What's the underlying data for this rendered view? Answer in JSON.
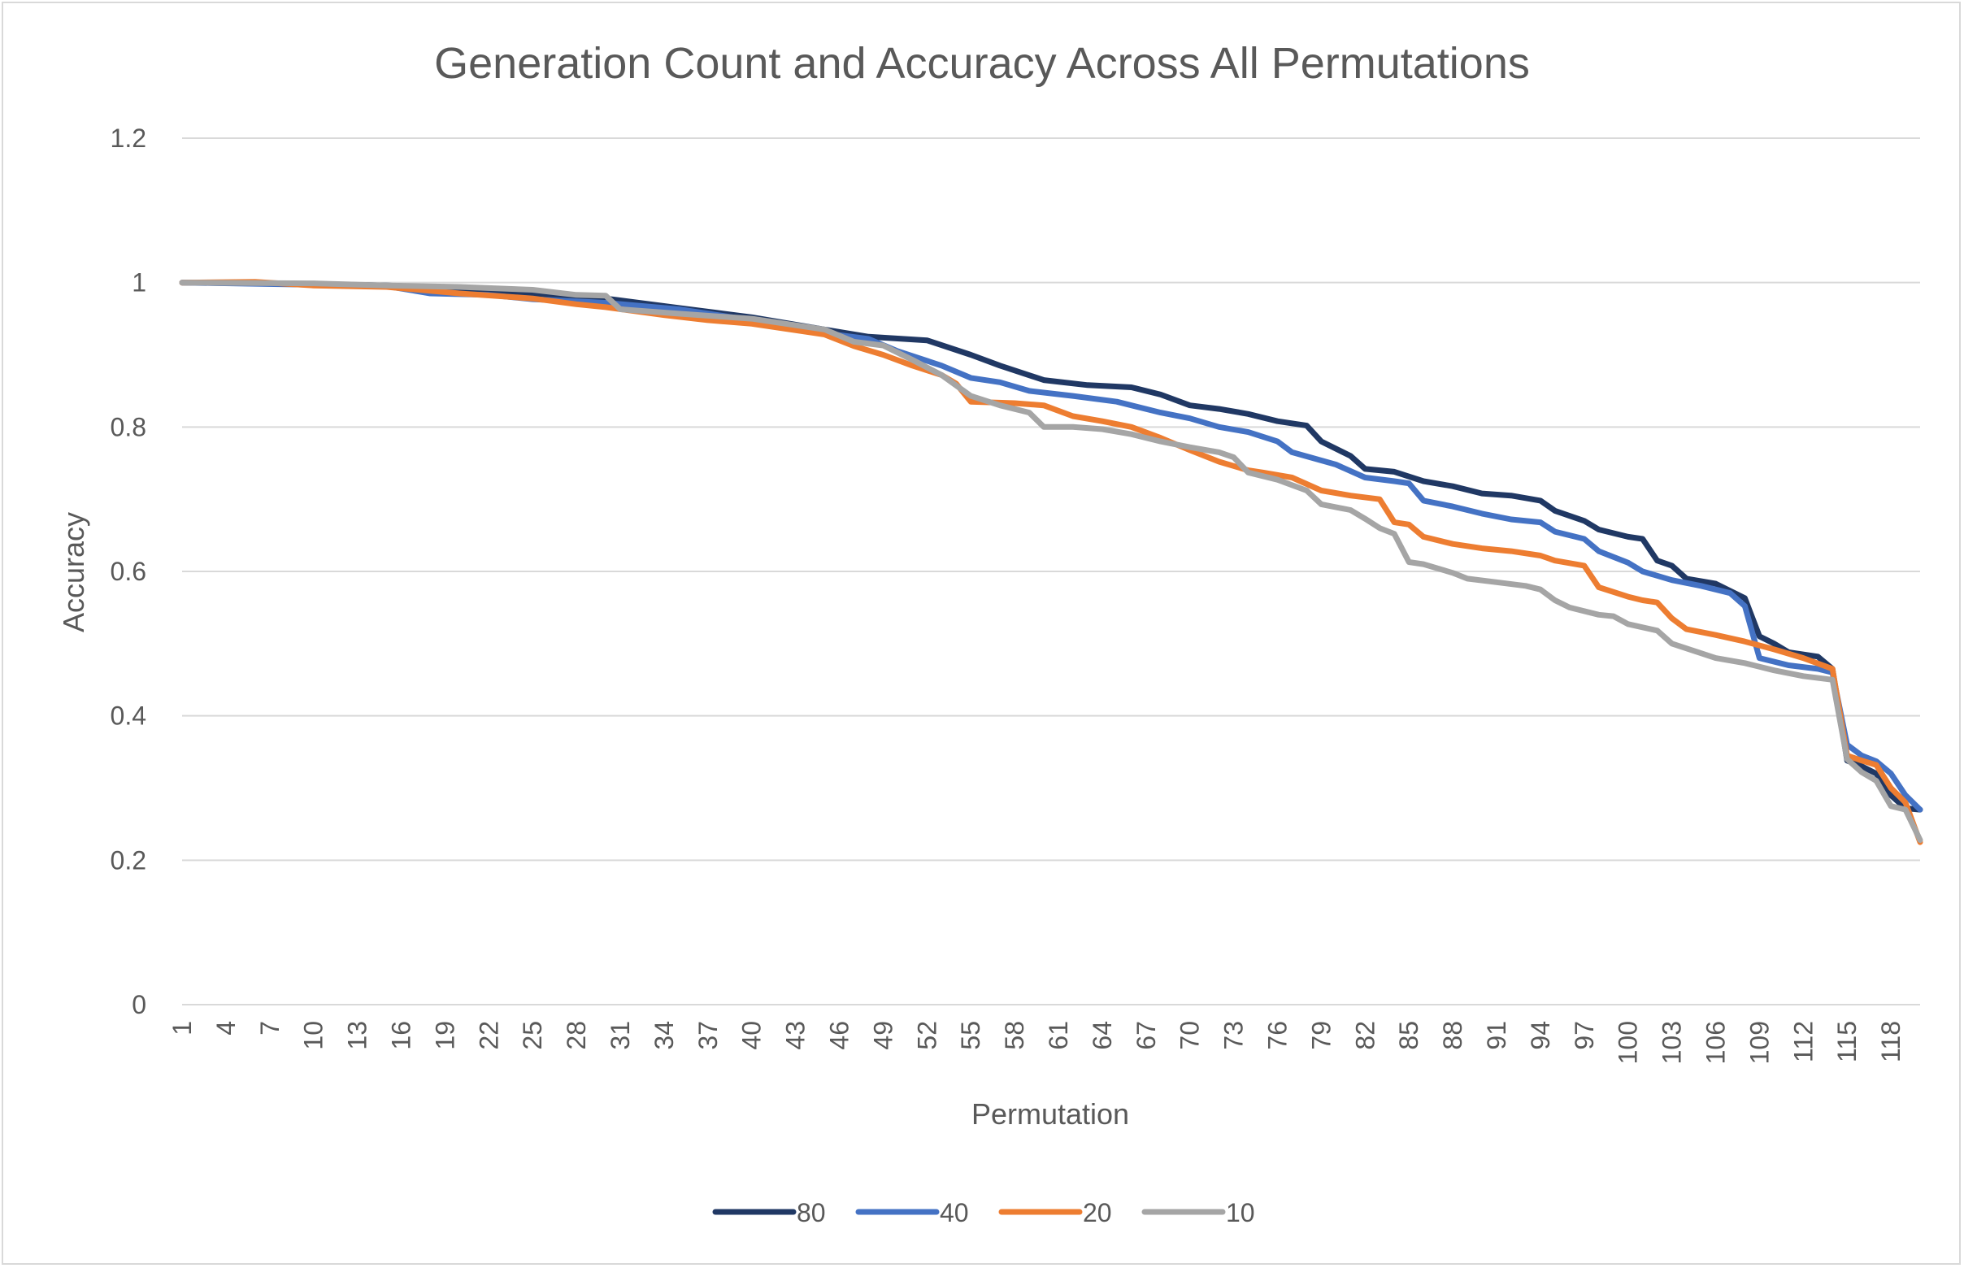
{
  "chart_data": {
    "type": "line",
    "title": "Generation Count and Accuracy Across All Permutations",
    "xlabel": "Permutation",
    "ylabel": "Accuracy",
    "ylim": [
      0,
      1.2
    ],
    "xlim": [
      1,
      120
    ],
    "y_ticks": [
      "0",
      "0.2",
      "0.4",
      "0.6",
      "0.8",
      "1",
      "1.2"
    ],
    "x_ticks": [
      "1",
      "4",
      "7",
      "10",
      "13",
      "16",
      "19",
      "22",
      "25",
      "28",
      "31",
      "34",
      "37",
      "40",
      "43",
      "46",
      "49",
      "52",
      "55",
      "58",
      "61",
      "64",
      "67",
      "70",
      "73",
      "76",
      "79",
      "82",
      "85",
      "88",
      "91",
      "94",
      "97",
      "100",
      "103",
      "106",
      "109",
      "112",
      "115",
      "118"
    ],
    "grid": "horizontal",
    "legend_position": "bottom",
    "series": [
      {
        "name": "80",
        "color": "#203864",
        "points": [
          [
            1,
            1.0
          ],
          [
            10,
            0.998
          ],
          [
            15,
            0.996
          ],
          [
            20,
            0.992
          ],
          [
            25,
            0.985
          ],
          [
            30,
            0.978
          ],
          [
            35,
            0.965
          ],
          [
            40,
            0.952
          ],
          [
            45,
            0.935
          ],
          [
            48,
            0.925
          ],
          [
            52,
            0.92
          ],
          [
            55,
            0.9
          ],
          [
            57,
            0.885
          ],
          [
            60,
            0.865
          ],
          [
            63,
            0.858
          ],
          [
            66,
            0.855
          ],
          [
            68,
            0.845
          ],
          [
            70,
            0.83
          ],
          [
            72,
            0.825
          ],
          [
            74,
            0.818
          ],
          [
            76,
            0.808
          ],
          [
            78,
            0.802
          ],
          [
            79,
            0.78
          ],
          [
            81,
            0.76
          ],
          [
            82,
            0.742
          ],
          [
            84,
            0.738
          ],
          [
            86,
            0.725
          ],
          [
            88,
            0.718
          ],
          [
            90,
            0.708
          ],
          [
            92,
            0.705
          ],
          [
            94,
            0.698
          ],
          [
            95,
            0.684
          ],
          [
            97,
            0.67
          ],
          [
            98,
            0.658
          ],
          [
            100,
            0.648
          ],
          [
            101,
            0.645
          ],
          [
            102,
            0.615
          ],
          [
            103,
            0.608
          ],
          [
            104,
            0.59
          ],
          [
            106,
            0.583
          ],
          [
            108,
            0.563
          ],
          [
            109,
            0.51
          ],
          [
            110,
            0.5
          ],
          [
            111,
            0.488
          ],
          [
            113,
            0.482
          ],
          [
            114,
            0.465
          ],
          [
            115,
            0.338
          ],
          [
            116,
            0.33
          ],
          [
            117,
            0.32
          ],
          [
            118,
            0.29
          ],
          [
            119,
            0.272
          ],
          [
            120,
            0.27
          ]
        ]
      },
      {
        "name": "40",
        "color": "#4472c4",
        "points": [
          [
            1,
            1.0
          ],
          [
            10,
            0.997
          ],
          [
            15,
            0.995
          ],
          [
            18,
            0.985
          ],
          [
            22,
            0.983
          ],
          [
            25,
            0.977
          ],
          [
            30,
            0.972
          ],
          [
            35,
            0.963
          ],
          [
            40,
            0.948
          ],
          [
            45,
            0.93
          ],
          [
            48,
            0.922
          ],
          [
            50,
            0.905
          ],
          [
            53,
            0.885
          ],
          [
            55,
            0.868
          ],
          [
            57,
            0.862
          ],
          [
            59,
            0.85
          ],
          [
            62,
            0.843
          ],
          [
            65,
            0.835
          ],
          [
            68,
            0.82
          ],
          [
            70,
            0.812
          ],
          [
            72,
            0.8
          ],
          [
            74,
            0.793
          ],
          [
            76,
            0.78
          ],
          [
            77,
            0.765
          ],
          [
            80,
            0.748
          ],
          [
            82,
            0.73
          ],
          [
            84,
            0.725
          ],
          [
            85,
            0.722
          ],
          [
            86,
            0.698
          ],
          [
            88,
            0.69
          ],
          [
            90,
            0.68
          ],
          [
            92,
            0.672
          ],
          [
            94,
            0.668
          ],
          [
            95,
            0.655
          ],
          [
            97,
            0.645
          ],
          [
            98,
            0.628
          ],
          [
            100,
            0.612
          ],
          [
            101,
            0.6
          ],
          [
            103,
            0.588
          ],
          [
            105,
            0.58
          ],
          [
            107,
            0.57
          ],
          [
            108,
            0.552
          ],
          [
            109,
            0.48
          ],
          [
            111,
            0.47
          ],
          [
            113,
            0.465
          ],
          [
            114,
            0.46
          ],
          [
            115,
            0.36
          ],
          [
            116,
            0.345
          ],
          [
            117,
            0.337
          ],
          [
            118,
            0.32
          ],
          [
            119,
            0.29
          ],
          [
            120,
            0.27
          ]
        ]
      },
      {
        "name": "20",
        "color": "#ed7d31",
        "points": [
          [
            1,
            1.0
          ],
          [
            6,
            1.001
          ],
          [
            10,
            0.996
          ],
          [
            15,
            0.994
          ],
          [
            20,
            0.985
          ],
          [
            25,
            0.978
          ],
          [
            28,
            0.97
          ],
          [
            30,
            0.966
          ],
          [
            34,
            0.955
          ],
          [
            37,
            0.948
          ],
          [
            40,
            0.943
          ],
          [
            45,
            0.928
          ],
          [
            47,
            0.912
          ],
          [
            49,
            0.9
          ],
          [
            51,
            0.885
          ],
          [
            53,
            0.872
          ],
          [
            54,
            0.86
          ],
          [
            55,
            0.835
          ],
          [
            58,
            0.833
          ],
          [
            60,
            0.83
          ],
          [
            62,
            0.815
          ],
          [
            64,
            0.808
          ],
          [
            66,
            0.8
          ],
          [
            68,
            0.785
          ],
          [
            70,
            0.768
          ],
          [
            72,
            0.752
          ],
          [
            74,
            0.74
          ],
          [
            75,
            0.737
          ],
          [
            77,
            0.73
          ],
          [
            79,
            0.712
          ],
          [
            81,
            0.705
          ],
          [
            83,
            0.7
          ],
          [
            84,
            0.668
          ],
          [
            85,
            0.665
          ],
          [
            86,
            0.648
          ],
          [
            88,
            0.638
          ],
          [
            90,
            0.632
          ],
          [
            92,
            0.628
          ],
          [
            94,
            0.622
          ],
          [
            95,
            0.615
          ],
          [
            97,
            0.608
          ],
          [
            98,
            0.578
          ],
          [
            100,
            0.565
          ],
          [
            101,
            0.56
          ],
          [
            102,
            0.557
          ],
          [
            103,
            0.535
          ],
          [
            104,
            0.52
          ],
          [
            106,
            0.512
          ],
          [
            108,
            0.503
          ],
          [
            110,
            0.492
          ],
          [
            112,
            0.48
          ],
          [
            114,
            0.465
          ],
          [
            115,
            0.345
          ],
          [
            116,
            0.338
          ],
          [
            117,
            0.332
          ],
          [
            118,
            0.3
          ],
          [
            119,
            0.28
          ],
          [
            120,
            0.225
          ]
        ]
      },
      {
        "name": "10",
        "color": "#a5a5a5",
        "points": [
          [
            1,
            1.0
          ],
          [
            10,
            0.999
          ],
          [
            15,
            0.996
          ],
          [
            20,
            0.994
          ],
          [
            25,
            0.99
          ],
          [
            28,
            0.983
          ],
          [
            30,
            0.982
          ],
          [
            31,
            0.963
          ],
          [
            35,
            0.957
          ],
          [
            40,
            0.95
          ],
          [
            45,
            0.935
          ],
          [
            47,
            0.918
          ],
          [
            49,
            0.913
          ],
          [
            51,
            0.893
          ],
          [
            53,
            0.872
          ],
          [
            55,
            0.843
          ],
          [
            57,
            0.83
          ],
          [
            59,
            0.82
          ],
          [
            60,
            0.8
          ],
          [
            62,
            0.8
          ],
          [
            64,
            0.797
          ],
          [
            66,
            0.79
          ],
          [
            68,
            0.78
          ],
          [
            70,
            0.772
          ],
          [
            72,
            0.765
          ],
          [
            73,
            0.758
          ],
          [
            74,
            0.737
          ],
          [
            76,
            0.727
          ],
          [
            78,
            0.712
          ],
          [
            79,
            0.693
          ],
          [
            81,
            0.685
          ],
          [
            82,
            0.673
          ],
          [
            83,
            0.66
          ],
          [
            84,
            0.652
          ],
          [
            85,
            0.613
          ],
          [
            86,
            0.61
          ],
          [
            88,
            0.598
          ],
          [
            89,
            0.59
          ],
          [
            91,
            0.585
          ],
          [
            93,
            0.58
          ],
          [
            94,
            0.575
          ],
          [
            95,
            0.56
          ],
          [
            96,
            0.55
          ],
          [
            98,
            0.54
          ],
          [
            99,
            0.538
          ],
          [
            100,
            0.527
          ],
          [
            102,
            0.518
          ],
          [
            103,
            0.5
          ],
          [
            106,
            0.48
          ],
          [
            108,
            0.473
          ],
          [
            110,
            0.463
          ],
          [
            112,
            0.455
          ],
          [
            114,
            0.45
          ],
          [
            115,
            0.34
          ],
          [
            116,
            0.322
          ],
          [
            117,
            0.31
          ],
          [
            118,
            0.275
          ],
          [
            119,
            0.27
          ],
          [
            120,
            0.228
          ]
        ]
      }
    ]
  }
}
